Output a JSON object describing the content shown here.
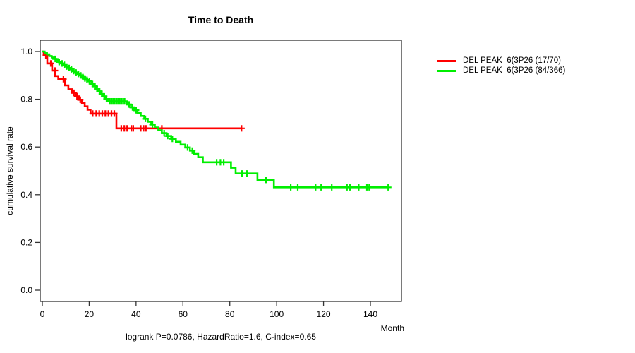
{
  "chart_data": {
    "type": "line",
    "subtype": "kaplan-meier-step-survival",
    "title": "Time to Death",
    "xlabel": "Month",
    "ylabel": "cumulative survival rate",
    "annotation": "logrank P=0.0786, HazardRatio=1.6, C-index=0.65",
    "xlim": [
      0,
      153
    ],
    "ylim": [
      0,
      1.0
    ],
    "xticks": [
      0,
      20,
      40,
      60,
      80,
      100,
      120,
      140
    ],
    "ytick_labels": [
      "0.0",
      "0.2",
      "0.4",
      "0.6",
      "0.8",
      "1.0"
    ],
    "grid": false,
    "legend_position": "outside-right-top",
    "axis_color": "#333333",
    "text_color": "#000000",
    "series": [
      {
        "name": "DEL PEAK  6(3P26 (17/70)",
        "color": "#ff0000",
        "points": [
          [
            0,
            1.0
          ],
          [
            0.6,
            0.984
          ],
          [
            2.1,
            0.95
          ],
          [
            4.2,
            0.92
          ],
          [
            5.5,
            0.897
          ],
          [
            6.8,
            0.884
          ],
          [
            9.7,
            0.858
          ],
          [
            11.1,
            0.842
          ],
          [
            12.6,
            0.827
          ],
          [
            14.2,
            0.812
          ],
          [
            15.6,
            0.798
          ],
          [
            16.9,
            0.784
          ],
          [
            18.1,
            0.77
          ],
          [
            19.3,
            0.756
          ],
          [
            20.6,
            0.74
          ],
          [
            31.6,
            0.678
          ],
          [
            85,
            0.678
          ]
        ],
        "censor_months": [
          1.5,
          3.6,
          5.4,
          9,
          13.5,
          14.8,
          16.2,
          21.5,
          23,
          24.3,
          25.6,
          26.9,
          28.2,
          29.5,
          30.7,
          33.7,
          35,
          36.2,
          38,
          38.8,
          42,
          43.2,
          44.2,
          51,
          85
        ]
      },
      {
        "name": "DEL PEAK  6(3P26 (84/366)",
        "color": "#00ee00",
        "points": [
          [
            0,
            1.0
          ],
          [
            1,
            0.994
          ],
          [
            2,
            0.988
          ],
          [
            3,
            0.981
          ],
          [
            4,
            0.975
          ],
          [
            5,
            0.969
          ],
          [
            6,
            0.962
          ],
          [
            7,
            0.956
          ],
          [
            8,
            0.95
          ],
          [
            9,
            0.944
          ],
          [
            10,
            0.937
          ],
          [
            11,
            0.931
          ],
          [
            12,
            0.925
          ],
          [
            13,
            0.918
          ],
          [
            14,
            0.912
          ],
          [
            15,
            0.906
          ],
          [
            16,
            0.9
          ],
          [
            17,
            0.893
          ],
          [
            18,
            0.887
          ],
          [
            19,
            0.881
          ],
          [
            20,
            0.875
          ],
          [
            21,
            0.864
          ],
          [
            22,
            0.854
          ],
          [
            23,
            0.843
          ],
          [
            24,
            0.833
          ],
          [
            25,
            0.822
          ],
          [
            26,
            0.812
          ],
          [
            27,
            0.801
          ],
          [
            28,
            0.791
          ],
          [
            36.2,
            0.778
          ],
          [
            37.8,
            0.766
          ],
          [
            39.2,
            0.754
          ],
          [
            40.6,
            0.742
          ],
          [
            42,
            0.73
          ],
          [
            43.5,
            0.718
          ],
          [
            45,
            0.706
          ],
          [
            46.5,
            0.694
          ],
          [
            48,
            0.682
          ],
          [
            49.5,
            0.67
          ],
          [
            51,
            0.658
          ],
          [
            53,
            0.646
          ],
          [
            55,
            0.634
          ],
          [
            57,
            0.622
          ],
          [
            59,
            0.61
          ],
          [
            61,
            0.598
          ],
          [
            63,
            0.585
          ],
          [
            64.8,
            0.571
          ],
          [
            66.5,
            0.557
          ],
          [
            68.5,
            0.536
          ],
          [
            80.5,
            0.513
          ],
          [
            82.5,
            0.489
          ],
          [
            91.8,
            0.462
          ],
          [
            98.8,
            0.431
          ],
          [
            148,
            0.431
          ]
        ],
        "censor_months": [
          5.5,
          7.2,
          8.4,
          9.4,
          10.4,
          11.4,
          12.4,
          13.4,
          14.4,
          15.4,
          16.4,
          17.3,
          18.2,
          19.1,
          20.1,
          21.4,
          22.4,
          23.4,
          24.4,
          25.4,
          26.4,
          27.4,
          28.8,
          29.5,
          30.2,
          30.9,
          31.6,
          32.3,
          33,
          33.7,
          34.4,
          35.1,
          37,
          38.5,
          40,
          44,
          47,
          52,
          53.5,
          55.5,
          62,
          64,
          74.4,
          76,
          77.4,
          85.2,
          87.3,
          95.4,
          106,
          109,
          116.6,
          119,
          123.5,
          130,
          131.3,
          135,
          138.5,
          139.5,
          147.6
        ]
      }
    ]
  }
}
